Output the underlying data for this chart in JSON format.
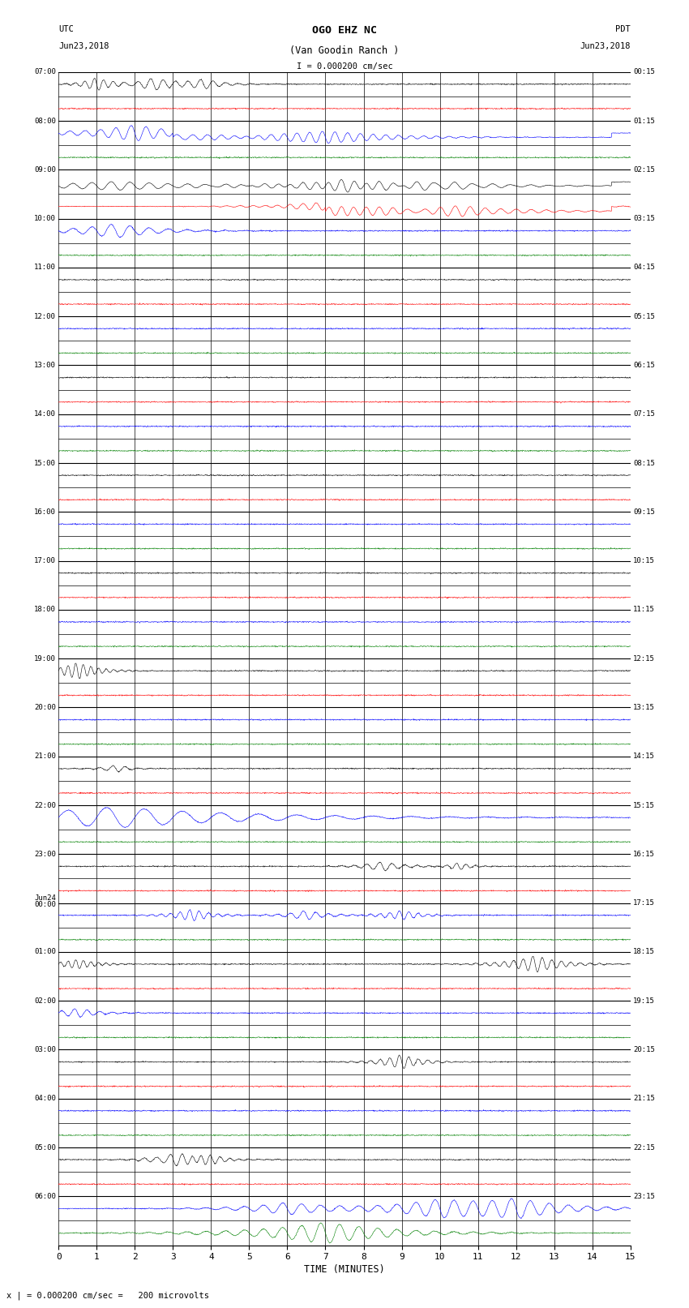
{
  "title_line1": "OGO EHZ NC",
  "title_line2": "(Van Goodin Ranch )",
  "title_scale": "I = 0.000200 cm/sec",
  "left_header_line1": "UTC",
  "left_header_line2": "Jun23,2018",
  "right_header_line1": "PDT",
  "right_header_line2": "Jun23,2018",
  "xlabel": "TIME (MINUTES)",
  "bottom_note": "x | = 0.000200 cm/sec =   200 microvolts",
  "xlim": [
    0,
    15
  ],
  "xticks": [
    0,
    1,
    2,
    3,
    4,
    5,
    6,
    7,
    8,
    9,
    10,
    11,
    12,
    13,
    14,
    15
  ],
  "left_times": [
    "07:00",
    "08:00",
    "09:00",
    "10:00",
    "11:00",
    "12:00",
    "13:00",
    "14:00",
    "15:00",
    "16:00",
    "17:00",
    "18:00",
    "19:00",
    "20:00",
    "21:00",
    "22:00",
    "23:00",
    "Jun24\n00:00",
    "01:00",
    "02:00",
    "03:00",
    "04:00",
    "05:00",
    "06:00"
  ],
  "right_times": [
    "00:15",
    "01:15",
    "02:15",
    "03:15",
    "04:15",
    "05:15",
    "06:15",
    "07:15",
    "08:15",
    "09:15",
    "10:15",
    "11:15",
    "12:15",
    "13:15",
    "14:15",
    "15:15",
    "16:15",
    "17:15",
    "18:15",
    "19:15",
    "20:15",
    "21:15",
    "22:15",
    "23:15"
  ],
  "n_rows": 48,
  "bg_color": "#ffffff",
  "grid_color": "#000000",
  "trace_colors_cycle": [
    "black",
    "red",
    "blue",
    "green"
  ],
  "figsize": [
    8.5,
    16.13
  ],
  "dpi": 100
}
